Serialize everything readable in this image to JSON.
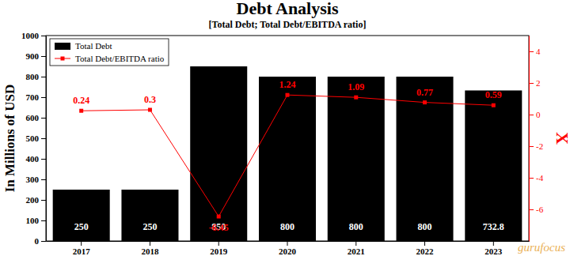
{
  "chart_data": {
    "type": "bar",
    "title": "Debt Analysis",
    "subtitle": "[Total Debt; Total Debt/EBITDA ratio]",
    "y_label": "In Millions of USD",
    "y2_label": "X",
    "categories": [
      "2017",
      "2018",
      "2019",
      "2020",
      "2021",
      "2022",
      "2023"
    ],
    "series": [
      {
        "name": "Total Debt",
        "type": "bar",
        "color": "#000000",
        "values": [
          250,
          250,
          850,
          800,
          800,
          800,
          732.8
        ]
      },
      {
        "name": "Total Debt/EBITDA ratio",
        "type": "line",
        "axis": "y2",
        "color": "#ff0000",
        "marker": "square",
        "values": [
          0.24,
          0.3,
          -6.45,
          1.24,
          1.09,
          0.77,
          0.59
        ]
      }
    ],
    "ylim": [
      0,
      1000
    ],
    "yticks": [
      0,
      100,
      200,
      300,
      400,
      500,
      600,
      700,
      800,
      900,
      1000
    ],
    "y2lim": [
      -8,
      5
    ],
    "y2ticks": [
      -6,
      -4,
      -2,
      0,
      2,
      4
    ],
    "data_labels": true,
    "legend": "upper left",
    "grid": false,
    "annotations": [
      "gurufocus"
    ]
  }
}
